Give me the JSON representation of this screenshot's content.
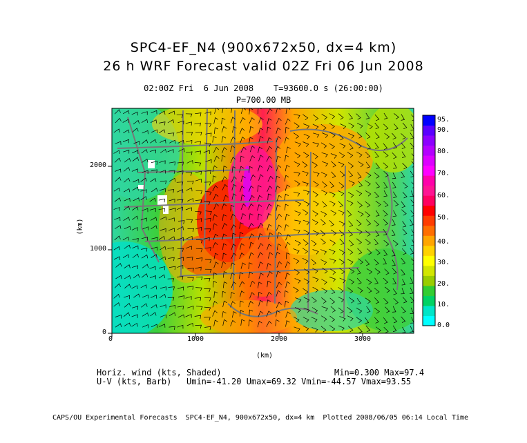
{
  "title_line1": "SPC4-EF_N4 (900x672x50, dx=4 km)",
  "title_line2": "26 h WRF Forecast valid 02Z Fri 06 Jun 2008",
  "time_line": "02:00Z Fri  6 Jun 2008    T=93600.0 s (26:00:00)",
  "level_line": "P=700.00 MB",
  "x_axis_label": "(km)",
  "y_axis_label": "(km)",
  "x_ticks": [
    "0",
    "1000",
    "2000",
    "3000"
  ],
  "y_ticks": [
    "0",
    "1000",
    "2000"
  ],
  "colorbar_labels": [
    "0.0",
    "10.",
    "20.",
    "30.",
    "40.",
    "50.",
    "60.",
    "70.",
    "80.",
    "90.",
    "95."
  ],
  "colorbar_colors": [
    "#00ffff",
    "#00e5c8",
    "#00d264",
    "#32cd32",
    "#9acd00",
    "#d2e600",
    "#ffff00",
    "#ffd200",
    "#ffa500",
    "#ff6e00",
    "#ff3c00",
    "#ff0000",
    "#ff0060",
    "#ff1493",
    "#ff00aa",
    "#ff00ff",
    "#dc00ff",
    "#b400ff",
    "#8c00ff",
    "#5a00ff",
    "#0000ff"
  ],
  "shaded_field": "Horiz. wind (kts, Shaded)",
  "min_max": "Min=0.300 Max=97.4",
  "barb_field": "U-V (kts, Barb)",
  "uv_stats": "Umin=-41.20 Umax=69.32 Vmin=-44.57 Vmax=93.55",
  "footer": "CAPS/OU Experimental Forecasts  SPC4-EF_N4, 900x672x50, dx=4 km  Plotted 2008/06/05 06:14 Local Time"
}
